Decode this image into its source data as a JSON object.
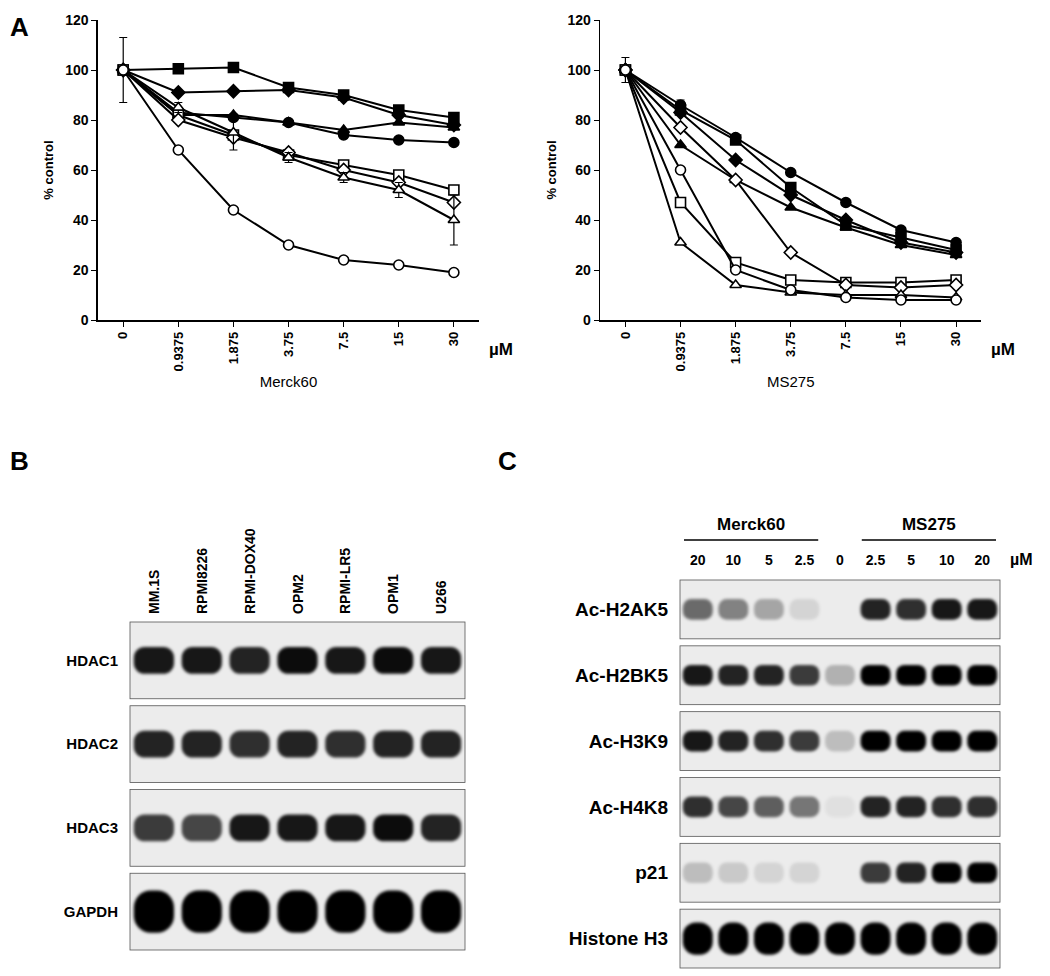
{
  "panels": [
    "A",
    "B",
    "C"
  ],
  "chart_data": [
    {
      "type": "line",
      "panel": "A",
      "x_label": "Merck60",
      "x_unit": "µM",
      "y_label": "% control",
      "color": "#000000",
      "categories": [
        "0",
        "0.9375",
        "1.875",
        "3.75",
        "7.5",
        "15",
        "30"
      ],
      "ylim": [
        0,
        120
      ],
      "yticks": [
        0,
        20,
        40,
        60,
        80,
        100,
        120
      ],
      "series": [
        {
          "marker": "square",
          "values": [
            100,
            100.5,
            101,
            93,
            90,
            84,
            81
          ]
        },
        {
          "marker": "diamond",
          "values": [
            100,
            91,
            91.5,
            92,
            89,
            82,
            78
          ]
        },
        {
          "marker": "triangle-up",
          "values": [
            100,
            82,
            82,
            79,
            76,
            79,
            77
          ]
        },
        {
          "marker": "circle",
          "values": [
            100,
            83,
            81,
            79,
            74,
            72,
            71
          ]
        },
        {
          "marker": "square-open",
          "values": [
            100,
            82,
            74,
            66,
            62,
            58,
            52
          ]
        },
        {
          "marker": "diamond-open",
          "values": [
            100,
            80,
            73,
            67,
            60,
            55,
            47
          ]
        },
        {
          "marker": "triangle-up-open",
          "values": [
            100,
            85,
            75,
            65,
            57,
            52,
            40
          ],
          "errors": [
            0,
            2,
            7,
            2,
            2,
            3,
            10
          ]
        },
        {
          "marker": "circle-open",
          "values": [
            100,
            68,
            44,
            30,
            24,
            22,
            19
          ],
          "errors": [
            13,
            1,
            1,
            1,
            1,
            1,
            1
          ]
        }
      ]
    },
    {
      "type": "line",
      "panel": "A",
      "x_label": "MS275",
      "x_unit": "µM",
      "y_label": "% control",
      "color": "#000000",
      "categories": [
        "0",
        "0.9375",
        "1.875",
        "3.75",
        "7.5",
        "15",
        "30"
      ],
      "ylim": [
        0,
        120
      ],
      "yticks": [
        0,
        20,
        40,
        60,
        80,
        100,
        120
      ],
      "series": [
        {
          "marker": "square",
          "values": [
            100,
            84,
            72,
            53,
            38,
            33,
            28
          ]
        },
        {
          "marker": "diamond",
          "values": [
            100,
            83,
            64,
            50,
            40,
            31,
            27
          ]
        },
        {
          "marker": "triangle-up",
          "values": [
            100,
            70,
            56,
            45,
            37,
            30,
            26
          ]
        },
        {
          "marker": "circle",
          "values": [
            100,
            86,
            73,
            59,
            47,
            36,
            31
          ],
          "errors": [
            5,
            2,
            1,
            1,
            1,
            1,
            1
          ]
        },
        {
          "marker": "square-open",
          "values": [
            100,
            47,
            23,
            16,
            15,
            15,
            16
          ]
        },
        {
          "marker": "diamond-open",
          "values": [
            100,
            77,
            56,
            27,
            14,
            13,
            14
          ]
        },
        {
          "marker": "triangle-up-open",
          "values": [
            100,
            31,
            14,
            11,
            10,
            10,
            9
          ]
        },
        {
          "marker": "circle-open",
          "values": [
            100,
            60,
            20,
            12,
            9,
            8,
            8
          ]
        }
      ]
    }
  ],
  "blots": [
    {
      "panel": "B",
      "lanes": [
        {
          "label": "MM.1S"
        },
        {
          "label": "RPMI8226"
        },
        {
          "label": "RPMI-DOX40"
        },
        {
          "label": "OPM2"
        },
        {
          "label": "RPMI-LR5"
        },
        {
          "label": "OPM1"
        },
        {
          "label": "U266"
        }
      ],
      "rows": [
        {
          "label": "HDAC1",
          "intensity": [
            0.9,
            0.9,
            0.85,
            0.95,
            0.9,
            0.95,
            0.9
          ]
        },
        {
          "label": "HDAC2",
          "intensity": [
            0.85,
            0.85,
            0.8,
            0.85,
            0.8,
            0.85,
            0.85
          ]
        },
        {
          "label": "HDAC3",
          "intensity": [
            0.75,
            0.7,
            0.9,
            0.9,
            0.9,
            0.95,
            0.85
          ]
        },
        {
          "label": "GAPDH",
          "intensity": [
            1,
            1,
            1,
            1,
            1,
            1,
            1
          ]
        }
      ]
    },
    {
      "panel": "C",
      "unit": "µM",
      "lanes": [
        {
          "label": "20",
          "group": "Merck60"
        },
        {
          "label": "10",
          "group": "Merck60"
        },
        {
          "label": "5",
          "group": "Merck60"
        },
        {
          "label": "2.5",
          "group": "Merck60"
        },
        {
          "label": "0",
          "group": null
        },
        {
          "label": "2.5",
          "group": "MS275"
        },
        {
          "label": "5",
          "group": "MS275"
        },
        {
          "label": "10",
          "group": "MS275"
        },
        {
          "label": "20",
          "group": "MS275"
        }
      ],
      "rows": [
        {
          "label": "Ac-H2AK5",
          "intensity": [
            0.55,
            0.45,
            0.3,
            0.1,
            0,
            0.85,
            0.8,
            0.9,
            0.9
          ]
        },
        {
          "label": "Ac-H2BK5",
          "intensity": [
            0.9,
            0.85,
            0.85,
            0.75,
            0.25,
            1,
            1,
            1,
            1
          ]
        },
        {
          "label": "Ac-H3K9",
          "intensity": [
            0.9,
            0.85,
            0.8,
            0.75,
            0.2,
            1,
            1,
            1,
            1
          ]
        },
        {
          "label": "Ac-H4K8",
          "intensity": [
            0.8,
            0.7,
            0.6,
            0.5,
            0.05,
            0.85,
            0.85,
            0.8,
            0.8
          ]
        },
        {
          "label": "p21",
          "intensity": [
            0.2,
            0.15,
            0.1,
            0.1,
            0,
            0.75,
            0.85,
            1,
            1
          ]
        },
        {
          "label": "Histone H3",
          "intensity": [
            1,
            1,
            1,
            1,
            1,
            1,
            1,
            1,
            1
          ]
        }
      ]
    }
  ]
}
